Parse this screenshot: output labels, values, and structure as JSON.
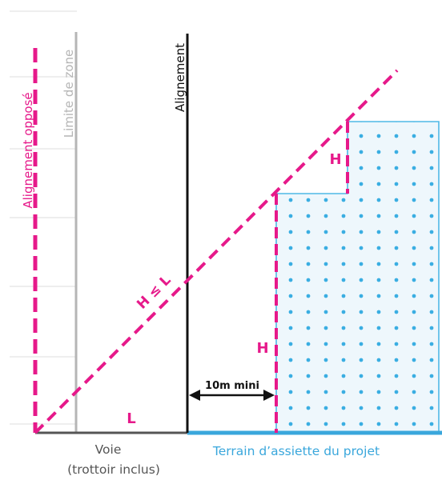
{
  "labels": {
    "alignement_oppose": "Alignement opposé",
    "limite_de_zone": "Limite de zone",
    "alignement": "Alignement",
    "h_le_l": "H ≤ L",
    "h_step": "H",
    "h_facade": "H",
    "l": "L",
    "distance": "10m mini",
    "voie_line1": "Voie",
    "voie_line2": "(trottoir inclus)",
    "terrain": "Terrain d’assiette du projet"
  },
  "colors": {
    "magenta": "#e6198a",
    "black": "#111111",
    "gray_zone": "#b5b5b5",
    "building_stroke": "#4fb8e6",
    "building_fill": "#eef7fc",
    "building_dots": "#3aaee2",
    "terrain_text": "#3aa7dc",
    "grid": "#dcdcdc"
  }
}
